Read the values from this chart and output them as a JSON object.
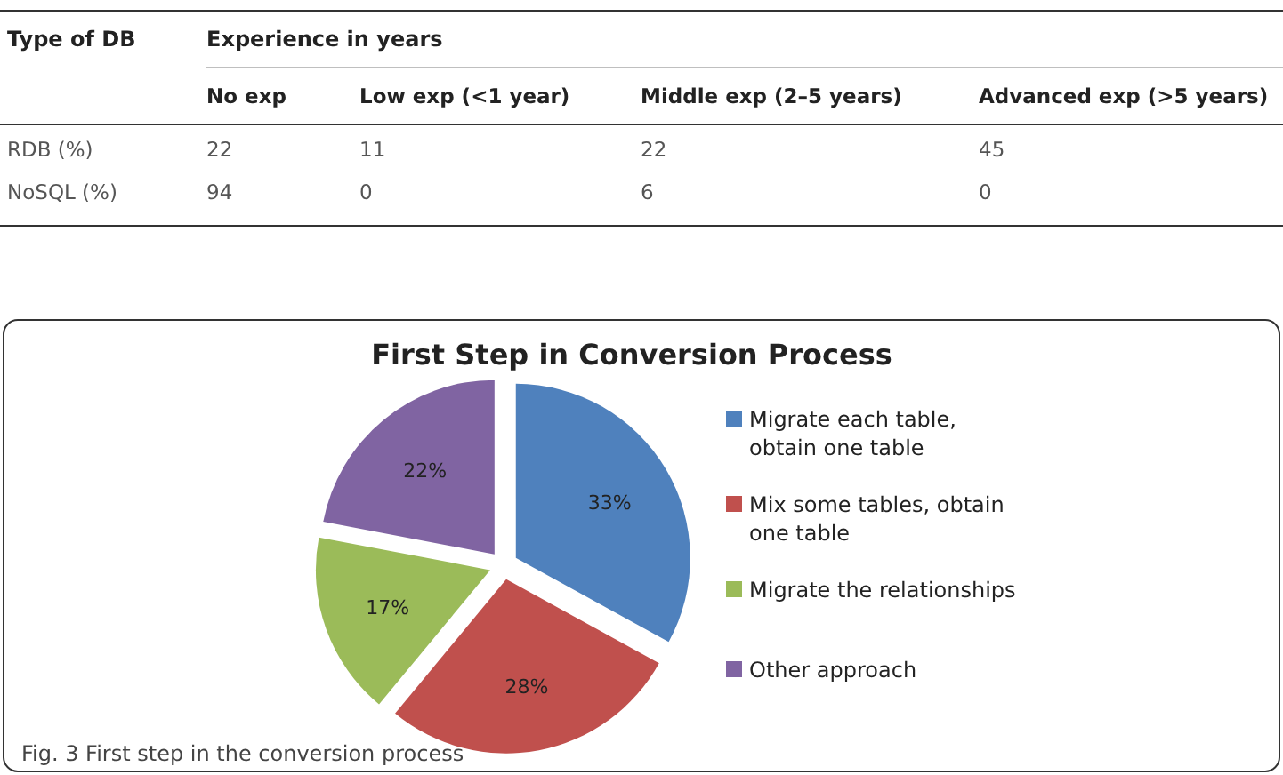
{
  "chart_data": [
    {
      "type": "heatmap",
      "xlabel": "Experience in years",
      "ylabel": "Type of DB",
      "categories": [
        "No exp",
        "Low exp (<1 year)",
        "Middle exp (2–5 years)",
        "Advanced exp (>5 years)"
      ],
      "y_categories": [
        "RDB (%)",
        "NoSQL (%)"
      ],
      "cells": [
        [
          22,
          11,
          22,
          45
        ],
        [
          94,
          0,
          6,
          0
        ]
      ],
      "data_labels": true
    },
    {
      "type": "pie",
      "title": "First Step in Conversion Process",
      "categories": [
        "Migrate each table, obtain one table",
        "Mix some tables, obtain one table",
        "Migrate the relationships",
        "Other approach"
      ],
      "values": [
        33,
        28,
        17,
        22
      ],
      "colors": [
        "#4f81bd",
        "#c0504d",
        "#9bbb59",
        "#8064a2"
      ],
      "value_labels": [
        "33%",
        "28%",
        "17%",
        "22%"
      ],
      "legend": "right",
      "annotations": [
        "Fig. 3 First step in the conversion process"
      ]
    }
  ]
}
